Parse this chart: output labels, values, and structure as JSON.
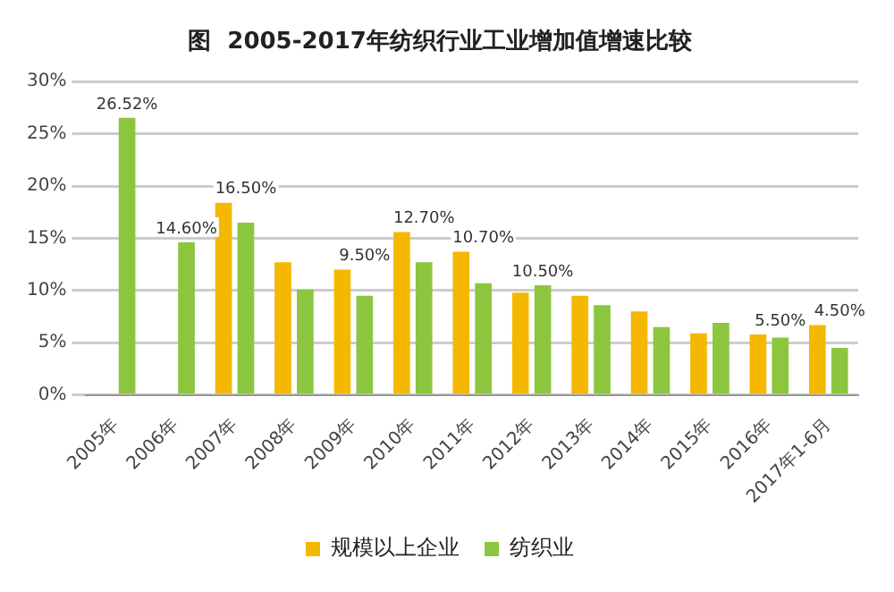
{
  "chart_data": {
    "type": "bar",
    "title": "图  2005-2017年纺织行业工业增加值增速比较",
    "categories": [
      "2005年",
      "2006年",
      "2007年",
      "2008年",
      "2009年",
      "2010年",
      "2011年",
      "2012年",
      "2013年",
      "2014年",
      "2015年",
      "2016年",
      "2017年1-6月"
    ],
    "series": [
      {
        "name": "规模以上企业",
        "color": "#f5b800",
        "values": [
          null,
          null,
          18.4,
          12.7,
          12.0,
          15.6,
          13.7,
          9.8,
          9.5,
          8.0,
          5.9,
          5.8,
          6.7
        ]
      },
      {
        "name": "纺织业",
        "color": "#8cc63f",
        "values": [
          26.52,
          14.6,
          16.5,
          10.1,
          9.5,
          12.7,
          10.7,
          10.5,
          8.6,
          6.5,
          6.9,
          5.5,
          4.5
        ],
        "value_labels": [
          "26.52%",
          "14.60%",
          "16.50%",
          null,
          "9.50%",
          "12.70%",
          "10.70%",
          "10.50%",
          null,
          null,
          null,
          "5.50%",
          "4.50%"
        ]
      }
    ],
    "ylim": [
      0,
      30
    ],
    "yticks": [
      {
        "value": 0,
        "label": "0%"
      },
      {
        "value": 5,
        "label": "5%"
      },
      {
        "value": 10,
        "label": "10%"
      },
      {
        "value": 15,
        "label": "15%"
      },
      {
        "value": 20,
        "label": "20%"
      },
      {
        "value": 25,
        "label": "25%"
      },
      {
        "value": 30,
        "label": "30%"
      }
    ],
    "grid": "y",
    "legend": "bottom"
  }
}
